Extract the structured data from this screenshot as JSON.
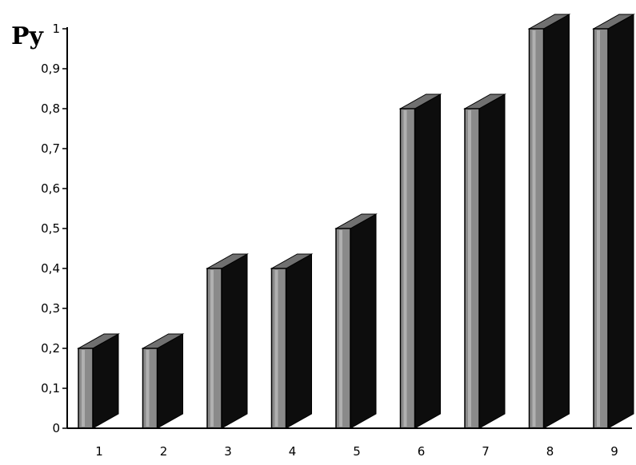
{
  "chart_data": {
    "type": "bar",
    "style": "3d-columns",
    "ylabel": "Py",
    "xlabel": "",
    "categories": [
      "1",
      "2",
      "3",
      "4",
      "5",
      "6",
      "7",
      "8",
      "9"
    ],
    "values": [
      0.2,
      0.2,
      0.4,
      0.4,
      0.5,
      0.8,
      0.8,
      1.0,
      1.0
    ],
    "ylim": [
      0,
      1
    ],
    "yticks": [
      "0",
      "0,1",
      "0,2",
      "0,3",
      "0,4",
      "0,5",
      "0,6",
      "0,7",
      "0,8",
      "0,9",
      "1"
    ],
    "grid": false,
    "legend": "none",
    "colors": {
      "front": "#8a8a8a",
      "front_highlight": "#b0b0b0",
      "side": "#0d0d0d",
      "top": "#707070",
      "axis": "#000000"
    }
  }
}
